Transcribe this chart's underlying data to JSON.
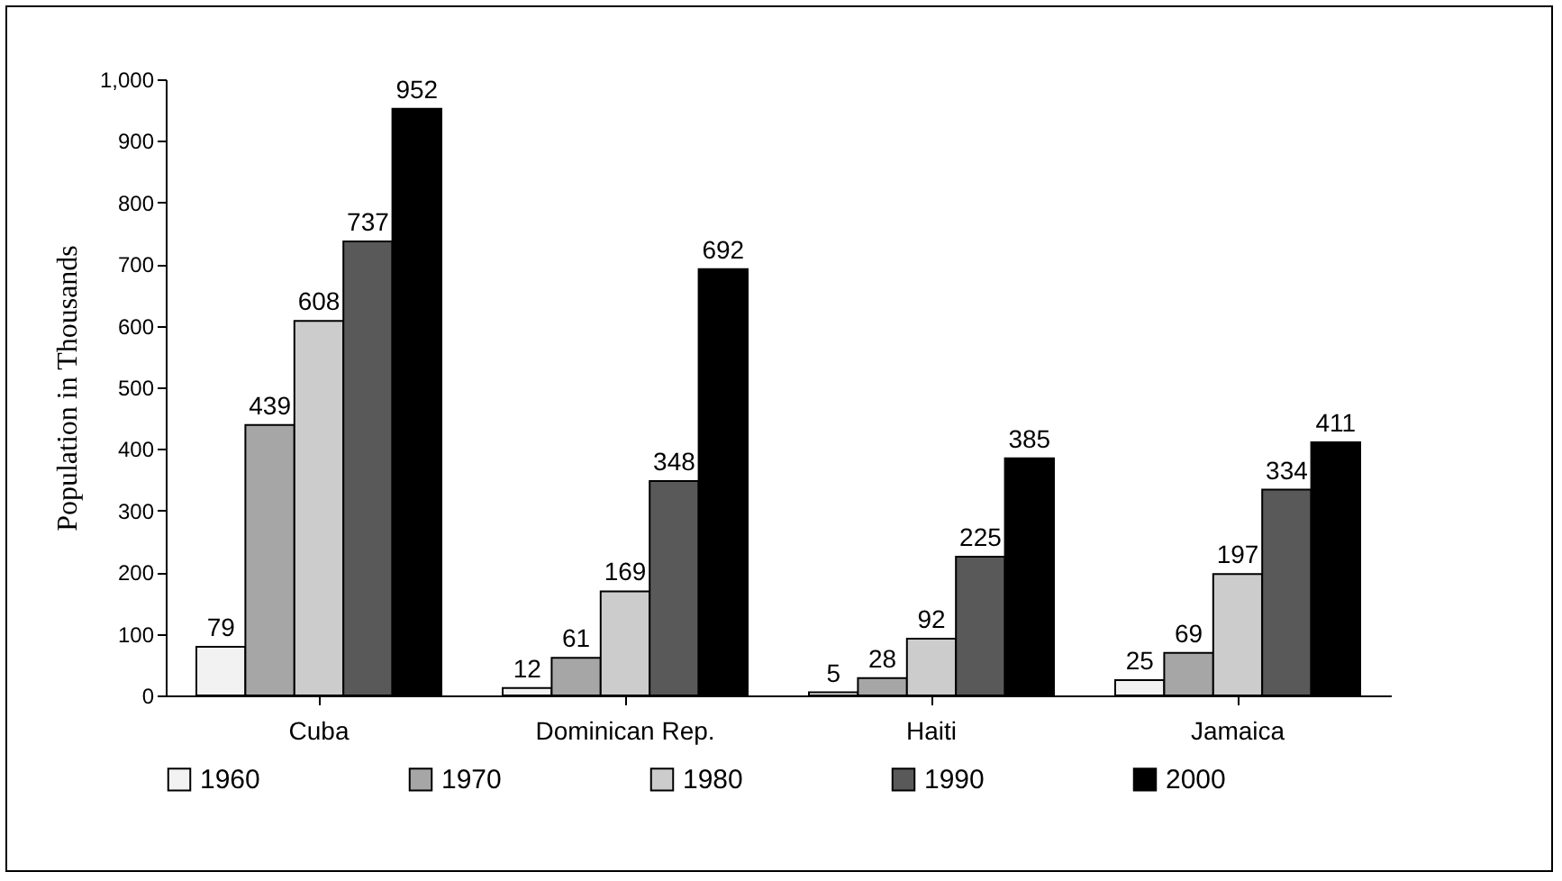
{
  "chart_data": {
    "type": "bar",
    "ylabel": "Population in Thousands",
    "categories": [
      "Cuba",
      "Dominican Rep.",
      "Haiti",
      "Jamaica"
    ],
    "series": [
      {
        "name": "1960",
        "color": "#f2f2f2",
        "values": [
          79,
          12,
          5,
          25
        ]
      },
      {
        "name": "1970",
        "color": "#a6a6a6",
        "values": [
          439,
          61,
          28,
          69
        ]
      },
      {
        "name": "1980",
        "color": "#cccccc",
        "values": [
          608,
          169,
          92,
          197
        ]
      },
      {
        "name": "1990",
        "color": "#595959",
        "values": [
          737,
          348,
          225,
          334
        ]
      },
      {
        "name": "2000",
        "color": "#000000",
        "values": [
          952,
          692,
          385,
          411
        ]
      }
    ],
    "ylim": [
      0,
      1000
    ],
    "yticks": [
      0,
      100,
      200,
      300,
      400,
      500,
      600,
      700,
      800,
      900,
      {
        "value": 1000,
        "label": "1,000"
      }
    ],
    "data_labels": true,
    "grid": false,
    "legend": "bottom"
  }
}
